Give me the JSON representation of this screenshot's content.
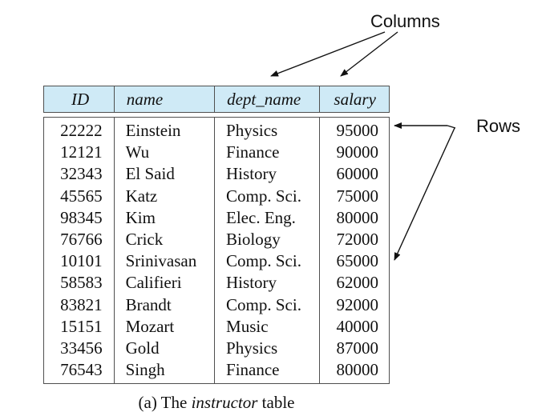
{
  "annotations": {
    "columns_label": "Columns",
    "rows_label": "Rows"
  },
  "table": {
    "headers": [
      "ID",
      "name",
      "dept_name",
      "salary"
    ],
    "rows": [
      [
        "22222",
        "Einstein",
        "Physics",
        "95000"
      ],
      [
        "12121",
        "Wu",
        "Finance",
        "90000"
      ],
      [
        "32343",
        "El Said",
        "History",
        "60000"
      ],
      [
        "45565",
        "Katz",
        "Comp. Sci.",
        "75000"
      ],
      [
        "98345",
        "Kim",
        "Elec. Eng.",
        "80000"
      ],
      [
        "76766",
        "Crick",
        "Biology",
        "72000"
      ],
      [
        "10101",
        "Srinivasan",
        "Comp. Sci.",
        "65000"
      ],
      [
        "58583",
        "Califieri",
        "History",
        "62000"
      ],
      [
        "83821",
        "Brandt",
        "Comp. Sci.",
        "92000"
      ],
      [
        "15151",
        "Mozart",
        "Music",
        "40000"
      ],
      [
        "33456",
        "Gold",
        "Physics",
        "87000"
      ],
      [
        "76543",
        "Singh",
        "Finance",
        "80000"
      ]
    ]
  },
  "caption": {
    "prefix": "(a) The ",
    "italic": "instructor",
    "suffix": " table"
  },
  "colors": {
    "header_fill": "#cfeaf6",
    "border": "#4f4f4f",
    "text": "#111111"
  }
}
